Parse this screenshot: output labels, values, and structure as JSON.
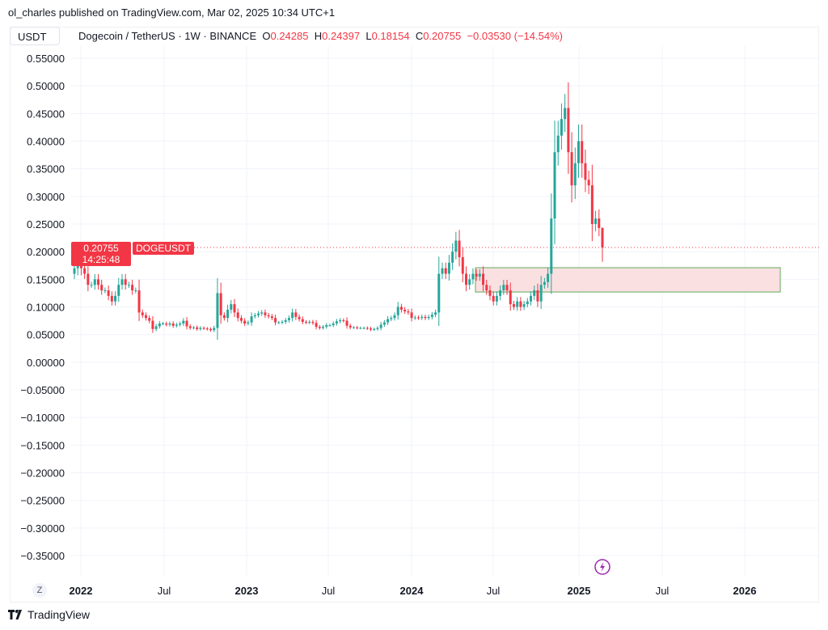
{
  "header": {
    "published": "ol_charles published on TradingView.com, Mar 02, 2025 10:34 UTC+1"
  },
  "currency_button": "USDT",
  "legend": {
    "symbol": "Dogecoin / TetherUS · 1W · BINANCE",
    "o_label": "O",
    "o": "0.24285",
    "h_label": "H",
    "h": "0.24397",
    "l_label": "L",
    "l": "0.18154",
    "c_label": "C",
    "c": "0.20755",
    "change": "−0.03530 (−14.54%)"
  },
  "price_label": {
    "price": "0.20755",
    "countdown": "14:25:48",
    "symbol": "DOGEUSDT"
  },
  "z_button": "Z",
  "branding": "TradingView",
  "icons": {
    "lightning": "lightning-icon",
    "logo": "tradingview-logo-icon"
  },
  "colors": {
    "up": "#26a69a",
    "down": "#f23645",
    "zone_fill": "#fbe0e2",
    "zone_border": "#5fae5a",
    "event": "#9c27b0"
  },
  "chart_data": {
    "type": "candlestick",
    "interval": "1W",
    "ylim": [
      -0.37,
      0.57
    ],
    "yticks": [
      "0.55000",
      "0.50000",
      "0.45000",
      "0.40000",
      "0.35000",
      "0.30000",
      "0.25000",
      "0.20000",
      "0.15000",
      "0.10000",
      "0.05000",
      "0.00000",
      "−0.05000",
      "−0.10000",
      "−0.15000",
      "−0.20000",
      "−0.25000",
      "−0.30000",
      "−0.35000"
    ],
    "xticks": [
      {
        "label": "2022",
        "bold": true
      },
      {
        "label": "Jul",
        "bold": false
      },
      {
        "label": "2023",
        "bold": true
      },
      {
        "label": "Jul",
        "bold": false
      },
      {
        "label": "2024",
        "bold": true
      },
      {
        "label": "Jul",
        "bold": false
      },
      {
        "label": "2025",
        "bold": true
      },
      {
        "label": "Jul",
        "bold": false
      },
      {
        "label": "2026",
        "bold": true
      }
    ],
    "grid": true,
    "last_price": 0.20755,
    "last_candle": {
      "open": 0.24285,
      "high": 0.24397,
      "low": 0.18154,
      "close": 0.20755
    },
    "first_open": 0.16,
    "closes": [
      0.17,
      0.19,
      0.17,
      0.16,
      0.14,
      0.14,
      0.15,
      0.14,
      0.13,
      0.13,
      0.12,
      0.11,
      0.12,
      0.14,
      0.15,
      0.14,
      0.14,
      0.13,
      0.13,
      0.09,
      0.085,
      0.08,
      0.075,
      0.06,
      0.065,
      0.07,
      0.07,
      0.068,
      0.07,
      0.066,
      0.068,
      0.07,
      0.075,
      0.065,
      0.062,
      0.063,
      0.06,
      0.062,
      0.061,
      0.06,
      0.058,
      0.062,
      0.125,
      0.085,
      0.08,
      0.095,
      0.105,
      0.09,
      0.08,
      0.075,
      0.07,
      0.072,
      0.083,
      0.085,
      0.088,
      0.09,
      0.085,
      0.083,
      0.08,
      0.072,
      0.072,
      0.073,
      0.076,
      0.08,
      0.09,
      0.082,
      0.078,
      0.073,
      0.072,
      0.073,
      0.071,
      0.064,
      0.062,
      0.064,
      0.067,
      0.067,
      0.07,
      0.074,
      0.076,
      0.075,
      0.066,
      0.063,
      0.063,
      0.062,
      0.062,
      0.062,
      0.061,
      0.059,
      0.06,
      0.062,
      0.068,
      0.072,
      0.078,
      0.08,
      0.085,
      0.1,
      0.095,
      0.092,
      0.09,
      0.08,
      0.081,
      0.08,
      0.082,
      0.08,
      0.082,
      0.086,
      0.09,
      0.16,
      0.17,
      0.16,
      0.18,
      0.2,
      0.22,
      0.19,
      0.16,
      0.14,
      0.15,
      0.16,
      0.155,
      0.16,
      0.14,
      0.13,
      0.12,
      0.11,
      0.12,
      0.13,
      0.14,
      0.13,
      0.105,
      0.1,
      0.11,
      0.1,
      0.105,
      0.11,
      0.12,
      0.13,
      0.11,
      0.14,
      0.145,
      0.16,
      0.26,
      0.38,
      0.41,
      0.44,
      0.46,
      0.38,
      0.32,
      0.36,
      0.4,
      0.36,
      0.33,
      0.32,
      0.25,
      0.26,
      0.24285,
      0.20755
    ],
    "zone": {
      "top": 0.171,
      "bottom": 0.127
    }
  }
}
